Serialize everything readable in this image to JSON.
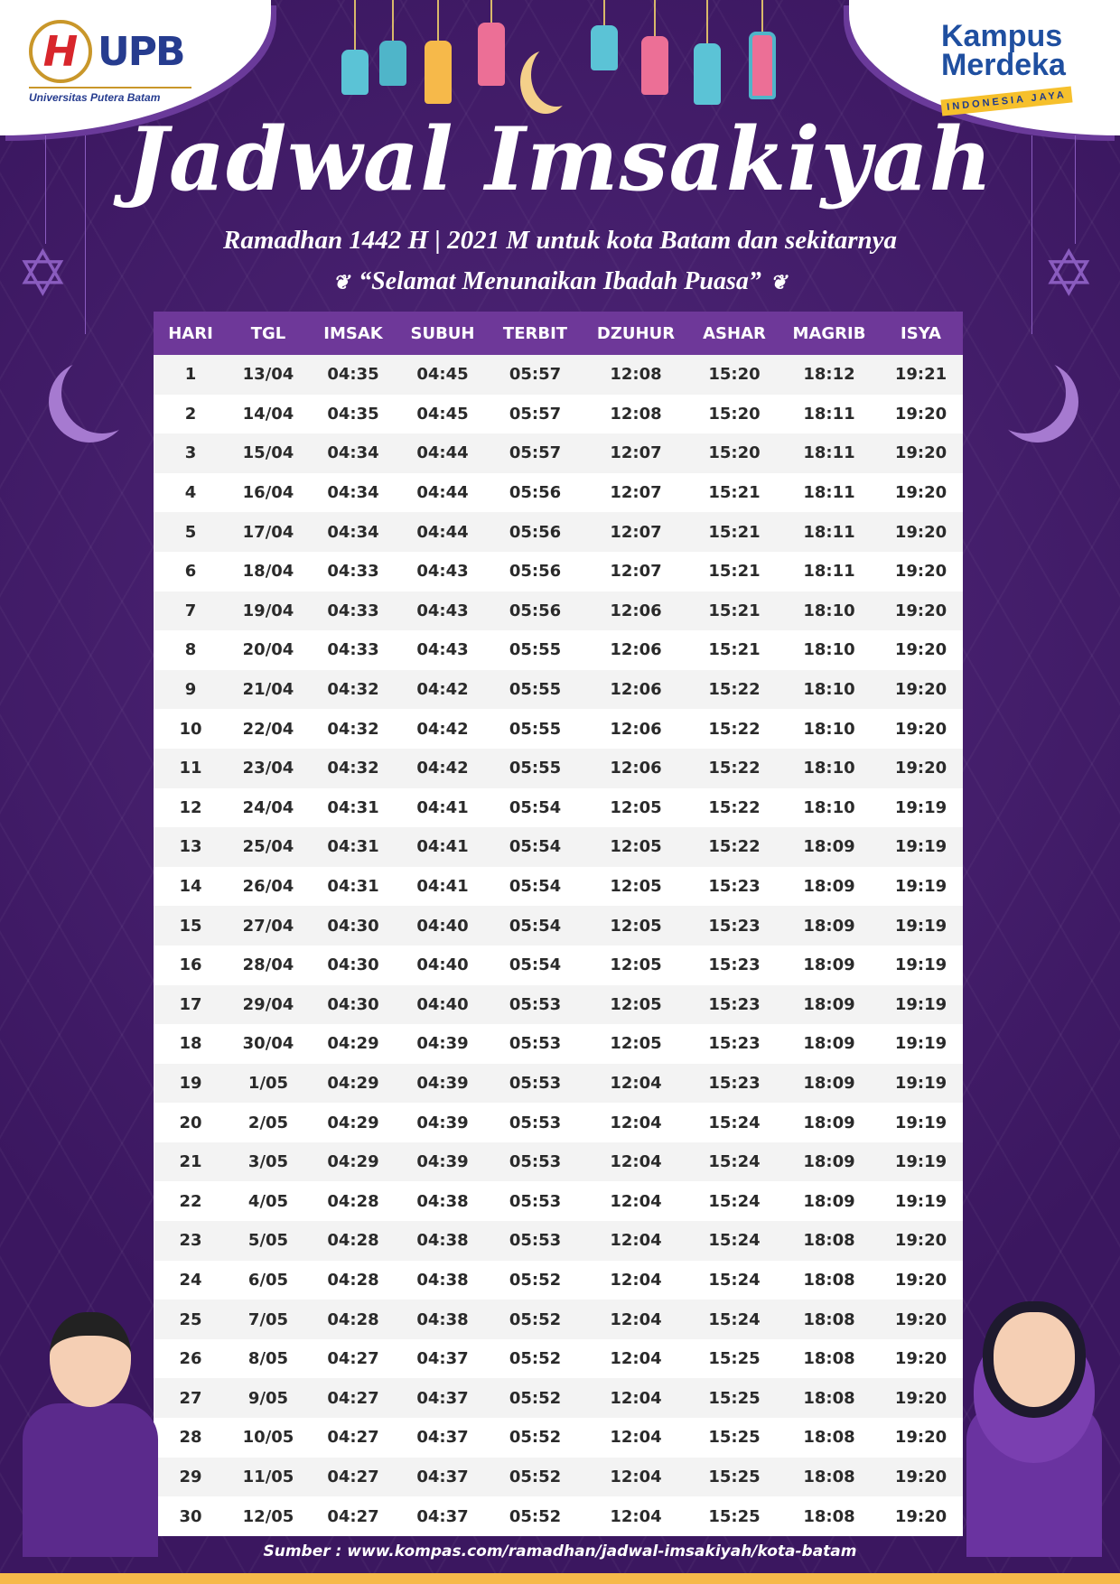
{
  "logos": {
    "upb_mark": "H",
    "upb_name": "UPB",
    "upb_full": "Universitas Putera Batam",
    "kampus_line1": "Kampus",
    "kampus_line2": "Merdeka",
    "kampus_tag": "INDONESIA JAYA"
  },
  "title": "Jadwal Imsakiyah",
  "subtitle": "Ramadhan 1442 H | 2021 M untuk kota Batam dan sekitarnya",
  "greeting": "“Selamat Menunaikan Ibadah Puasa”",
  "colors": {
    "background": "#3b1760",
    "header": "#6e3899",
    "accent": "#f6b94a"
  },
  "table": {
    "headers": [
      "HARI",
      "TGL",
      "IMSAK",
      "SUBUH",
      "TERBIT",
      "DZUHUR",
      "ASHAR",
      "MAGRIB",
      "ISYA"
    ],
    "rows": [
      [
        "1",
        "13/04",
        "04:35",
        "04:45",
        "05:57",
        "12:08",
        "15:20",
        "18:12",
        "19:21"
      ],
      [
        "2",
        "14/04",
        "04:35",
        "04:45",
        "05:57",
        "12:08",
        "15:20",
        "18:11",
        "19:20"
      ],
      [
        "3",
        "15/04",
        "04:34",
        "04:44",
        "05:57",
        "12:07",
        "15:20",
        "18:11",
        "19:20"
      ],
      [
        "4",
        "16/04",
        "04:34",
        "04:44",
        "05:56",
        "12:07",
        "15:21",
        "18:11",
        "19:20"
      ],
      [
        "5",
        "17/04",
        "04:34",
        "04:44",
        "05:56",
        "12:07",
        "15:21",
        "18:11",
        "19:20"
      ],
      [
        "6",
        "18/04",
        "04:33",
        "04:43",
        "05:56",
        "12:07",
        "15:21",
        "18:11",
        "19:20"
      ],
      [
        "7",
        "19/04",
        "04:33",
        "04:43",
        "05:56",
        "12:06",
        "15:21",
        "18:10",
        "19:20"
      ],
      [
        "8",
        "20/04",
        "04:33",
        "04:43",
        "05:55",
        "12:06",
        "15:21",
        "18:10",
        "19:20"
      ],
      [
        "9",
        "21/04",
        "04:32",
        "04:42",
        "05:55",
        "12:06",
        "15:22",
        "18:10",
        "19:20"
      ],
      [
        "10",
        "22/04",
        "04:32",
        "04:42",
        "05:55",
        "12:06",
        "15:22",
        "18:10",
        "19:20"
      ],
      [
        "11",
        "23/04",
        "04:32",
        "04:42",
        "05:55",
        "12:06",
        "15:22",
        "18:10",
        "19:20"
      ],
      [
        "12",
        "24/04",
        "04:31",
        "04:41",
        "05:54",
        "12:05",
        "15:22",
        "18:10",
        "19:19"
      ],
      [
        "13",
        "25/04",
        "04:31",
        "04:41",
        "05:54",
        "12:05",
        "15:22",
        "18:09",
        "19:19"
      ],
      [
        "14",
        "26/04",
        "04:31",
        "04:41",
        "05:54",
        "12:05",
        "15:23",
        "18:09",
        "19:19"
      ],
      [
        "15",
        "27/04",
        "04:30",
        "04:40",
        "05:54",
        "12:05",
        "15:23",
        "18:09",
        "19:19"
      ],
      [
        "16",
        "28/04",
        "04:30",
        "04:40",
        "05:54",
        "12:05",
        "15:23",
        "18:09",
        "19:19"
      ],
      [
        "17",
        "29/04",
        "04:30",
        "04:40",
        "05:53",
        "12:05",
        "15:23",
        "18:09",
        "19:19"
      ],
      [
        "18",
        "30/04",
        "04:29",
        "04:39",
        "05:53",
        "12:05",
        "15:23",
        "18:09",
        "19:19"
      ],
      [
        "19",
        "1/05",
        "04:29",
        "04:39",
        "05:53",
        "12:04",
        "15:23",
        "18:09",
        "19:19"
      ],
      [
        "20",
        "2/05",
        "04:29",
        "04:39",
        "05:53",
        "12:04",
        "15:24",
        "18:09",
        "19:19"
      ],
      [
        "21",
        "3/05",
        "04:29",
        "04:39",
        "05:53",
        "12:04",
        "15:24",
        "18:09",
        "19:19"
      ],
      [
        "22",
        "4/05",
        "04:28",
        "04:38",
        "05:53",
        "12:04",
        "15:24",
        "18:09",
        "19:19"
      ],
      [
        "23",
        "5/05",
        "04:28",
        "04:38",
        "05:53",
        "12:04",
        "15:24",
        "18:08",
        "19:20"
      ],
      [
        "24",
        "6/05",
        "04:28",
        "04:38",
        "05:52",
        "12:04",
        "15:24",
        "18:08",
        "19:20"
      ],
      [
        "25",
        "7/05",
        "04:28",
        "04:38",
        "05:52",
        "12:04",
        "15:24",
        "18:08",
        "19:20"
      ],
      [
        "26",
        "8/05",
        "04:27",
        "04:37",
        "05:52",
        "12:04",
        "15:25",
        "18:08",
        "19:20"
      ],
      [
        "27",
        "9/05",
        "04:27",
        "04:37",
        "05:52",
        "12:04",
        "15:25",
        "18:08",
        "19:20"
      ],
      [
        "28",
        "10/05",
        "04:27",
        "04:37",
        "05:52",
        "12:04",
        "15:25",
        "18:08",
        "19:20"
      ],
      [
        "29",
        "11/05",
        "04:27",
        "04:37",
        "05:52",
        "12:04",
        "15:25",
        "18:08",
        "19:20"
      ],
      [
        "30",
        "12/05",
        "04:27",
        "04:37",
        "05:52",
        "12:04",
        "15:25",
        "18:08",
        "19:20"
      ]
    ]
  },
  "source": "Sumber : www.kompas.com/ramadhan/jadwal-imsakiyah/kota-batam"
}
